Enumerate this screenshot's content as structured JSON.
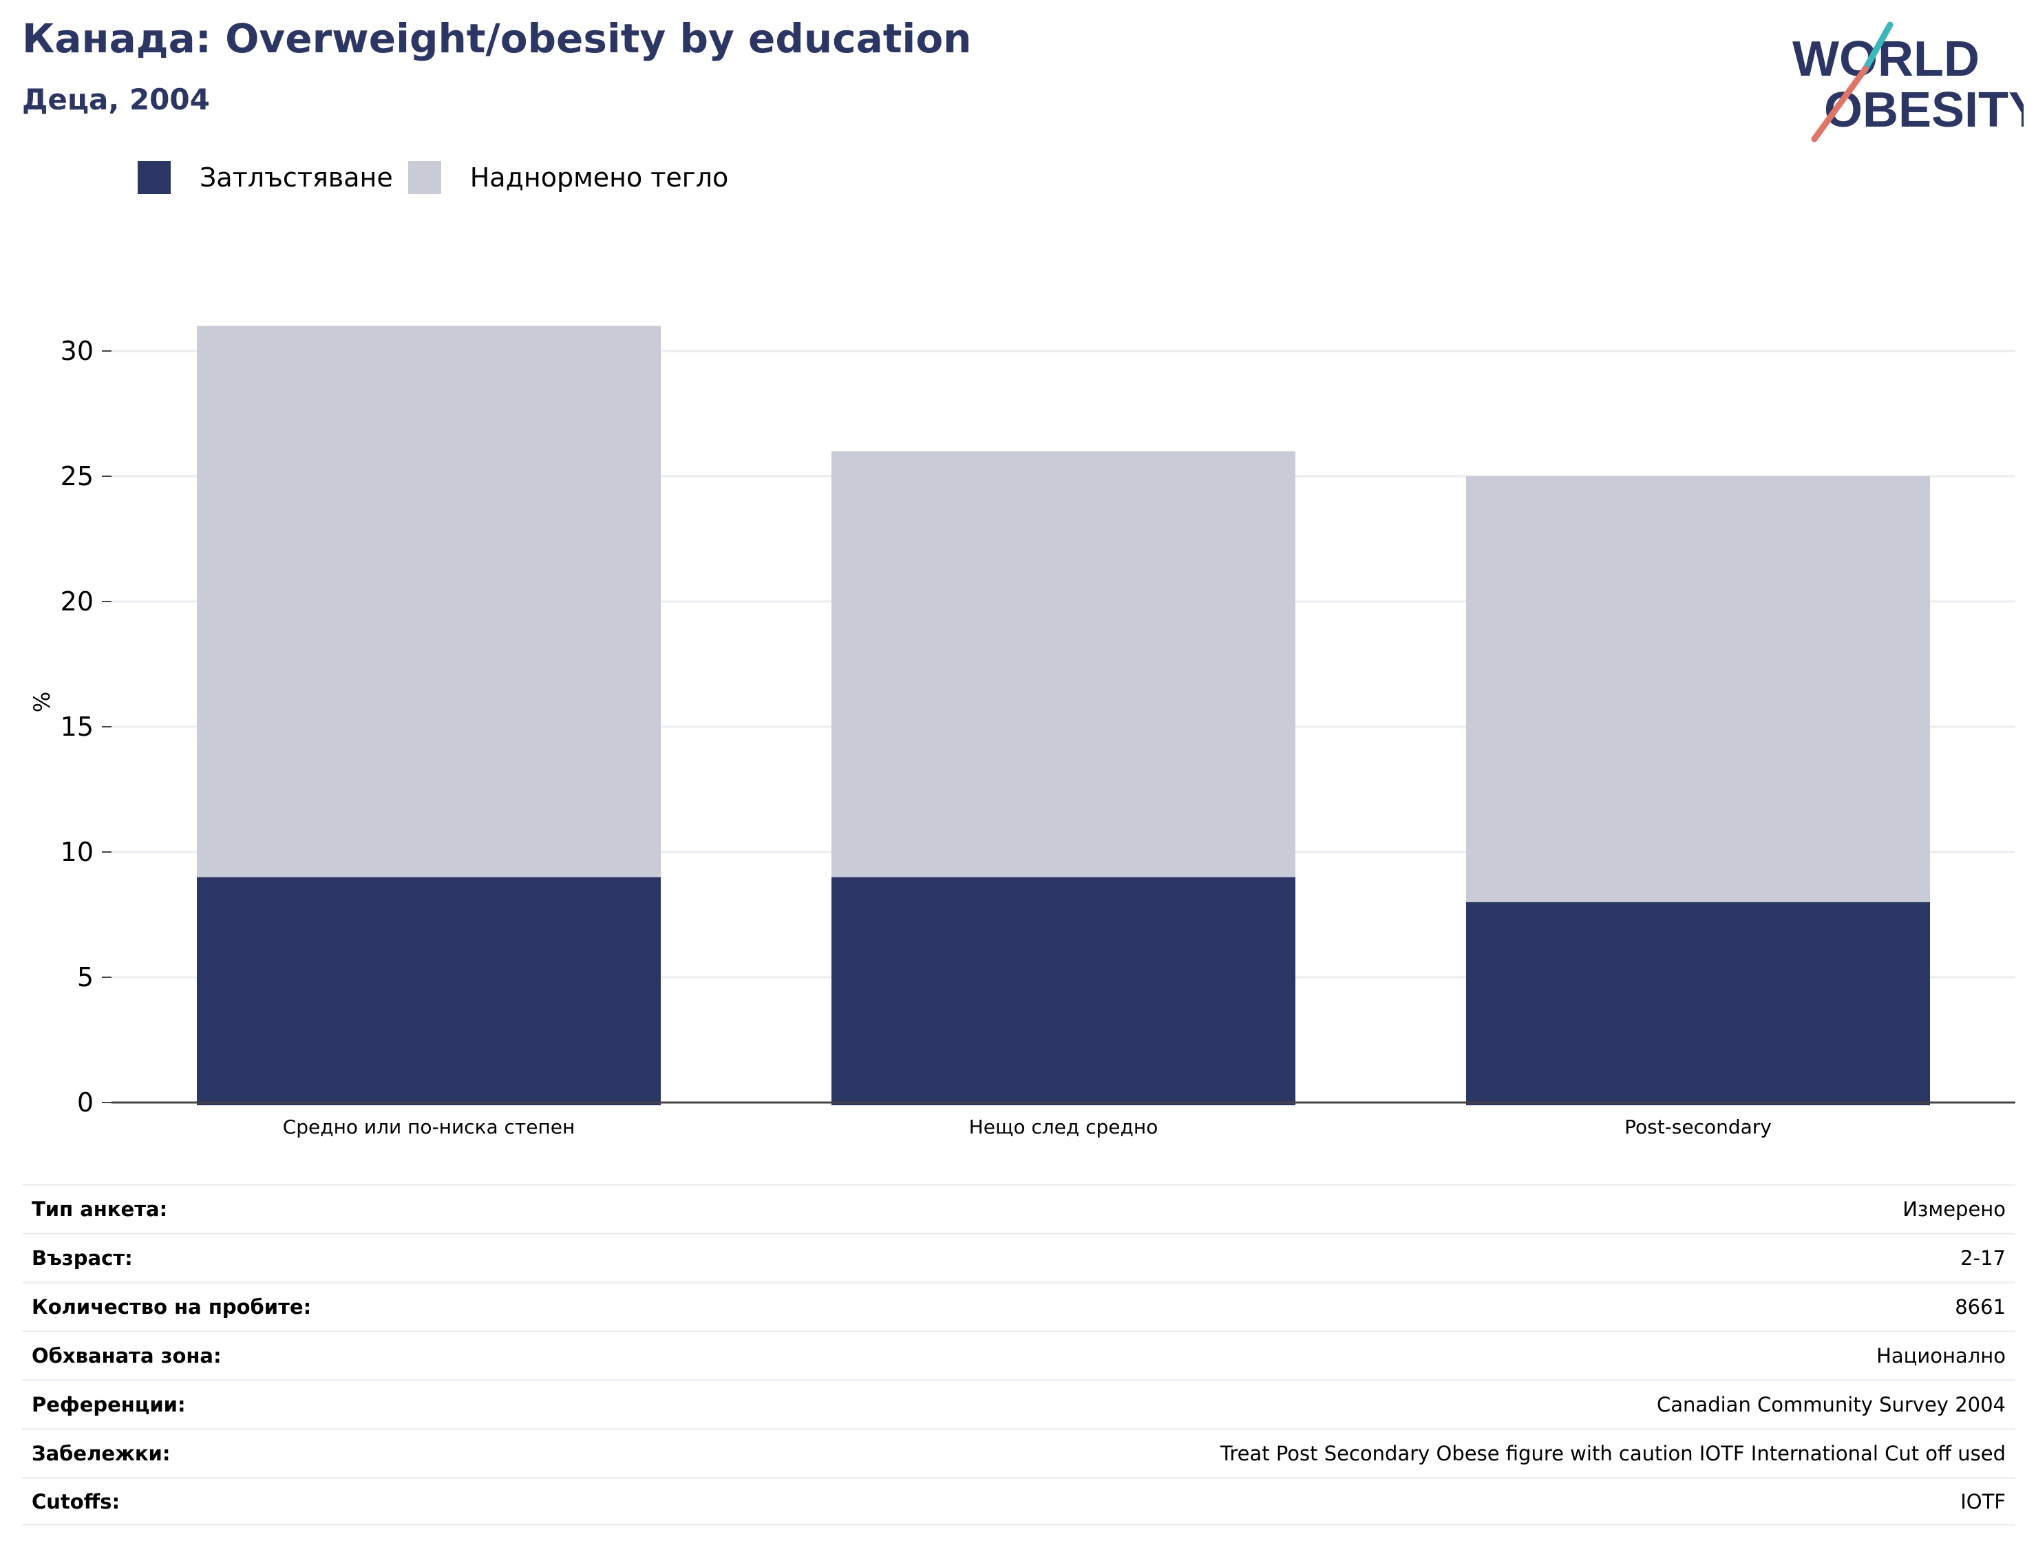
{
  "title": "Канада: Overweight/obesity by education",
  "subtitle": "Деца, 2004",
  "logo": {
    "line1": "WORLD",
    "line2": "OBESITY"
  },
  "legend": [
    {
      "label": "Затлъстяване",
      "color": "#2b3664"
    },
    {
      "label": "Наднормено тегло",
      "color": "#c9cbd7"
    }
  ],
  "chart_data": {
    "type": "bar",
    "stacked": true,
    "categories": [
      "Средно или по-ниска степен",
      "Нещо след средно",
      "Post-secondary"
    ],
    "series": [
      {
        "name": "Затлъстяване",
        "values": [
          9,
          9,
          8
        ],
        "color": "#2b3664"
      },
      {
        "name": "Наднормено тегло",
        "values": [
          22,
          17,
          17
        ],
        "color": "#c9cbd7"
      }
    ],
    "ylabel": "%",
    "ylim": [
      0,
      31.5
    ],
    "yticks": [
      0,
      5,
      10,
      15,
      20,
      25,
      30
    ],
    "grid": true,
    "legend_position": "top-left"
  },
  "metadata": [
    {
      "label": "Тип анкета:",
      "value": "Измерено"
    },
    {
      "label": "Възраст:",
      "value": "2-17"
    },
    {
      "label": "Количество на пробите:",
      "value": "8661"
    },
    {
      "label": "Обхваната зона:",
      "value": "Национално"
    },
    {
      "label": "Референции:",
      "value": "Canadian Community Survey 2004"
    },
    {
      "label": "Забележки:",
      "value": "Treat Post Secondary Obese figure with caution IOTF International Cut off used"
    },
    {
      "label": "Cutoffs:",
      "value": "IOTF"
    }
  ]
}
